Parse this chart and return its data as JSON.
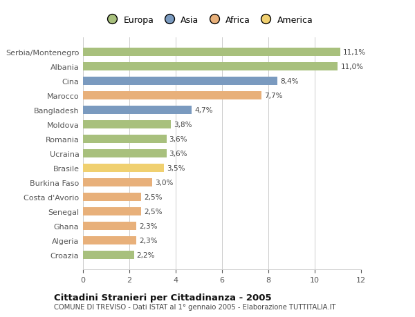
{
  "categories": [
    "Croazia",
    "Algeria",
    "Ghana",
    "Senegal",
    "Costa d'Avorio",
    "Burkina Faso",
    "Brasile",
    "Ucraina",
    "Romania",
    "Moldova",
    "Bangladesh",
    "Marocco",
    "Cina",
    "Albania",
    "Serbia/Montenegro"
  ],
  "values": [
    2.2,
    2.3,
    2.3,
    2.5,
    2.5,
    3.0,
    3.5,
    3.6,
    3.6,
    3.8,
    4.7,
    7.7,
    8.4,
    11.0,
    11.1
  ],
  "labels": [
    "2,2%",
    "2,3%",
    "2,3%",
    "2,5%",
    "2,5%",
    "3,0%",
    "3,5%",
    "3,6%",
    "3,6%",
    "3,8%",
    "4,7%",
    "7,7%",
    "8,4%",
    "11,0%",
    "11,1%"
  ],
  "colors": [
    "#a8c07d",
    "#e8b07a",
    "#e8b07a",
    "#e8b07a",
    "#e8b07a",
    "#e8b07a",
    "#f0d070",
    "#a8c07d",
    "#a8c07d",
    "#a8c07d",
    "#7a9abf",
    "#e8b07a",
    "#7a9abf",
    "#a8c07d",
    "#a8c07d"
  ],
  "continent_colors": {
    "Europa": "#a8c07d",
    "Asia": "#7a9abf",
    "Africa": "#e8b07a",
    "America": "#f0d070"
  },
  "xlim": [
    0,
    12
  ],
  "xticks": [
    0,
    2,
    4,
    6,
    8,
    10,
    12
  ],
  "title": "Cittadini Stranieri per Cittadinanza - 2005",
  "subtitle": "COMUNE DI TREVISO - Dati ISTAT al 1° gennaio 2005 - Elaborazione TUTTITALIA.IT",
  "background_color": "#ffffff",
  "bar_height": 0.55,
  "grid_color": "#cccccc"
}
